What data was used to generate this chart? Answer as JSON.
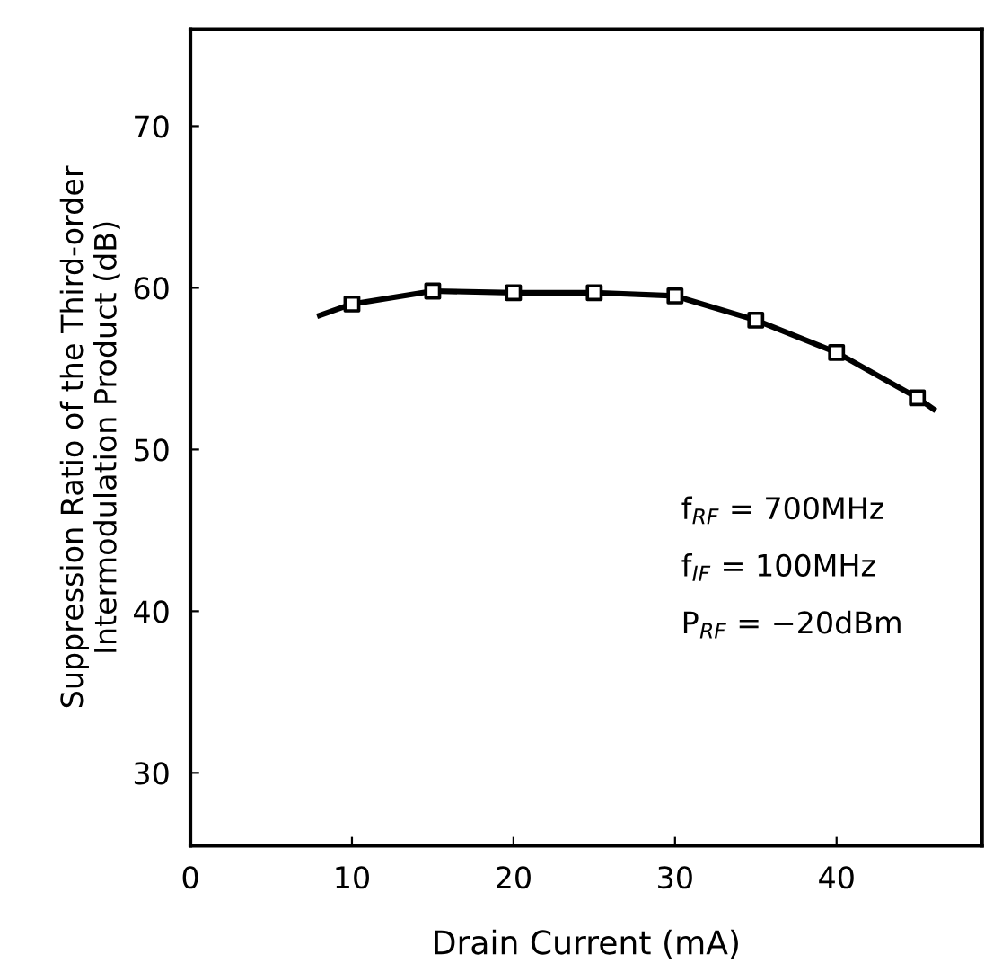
{
  "chart_data": {
    "type": "line",
    "xlabel": "Drain Current (mA)",
    "ylabel": "Suppression Ratio of the Third-order\nIntermodulation Product (dB)",
    "series": [
      {
        "color": "#000000",
        "marker": "none",
        "x": [
          8,
          10,
          15,
          20,
          25,
          30,
          35,
          40,
          45,
          46
        ],
        "values": [
          58.3,
          59.0,
          59.8,
          59.7,
          59.7,
          59.5,
          58.0,
          56.0,
          53.2,
          52.5
        ]
      },
      {
        "color": "#000000",
        "type": "scatter",
        "marker": "square",
        "x": [
          10,
          15,
          20,
          25,
          30,
          35,
          40,
          45
        ],
        "values": [
          59.0,
          59.8,
          59.7,
          59.7,
          59.5,
          58.0,
          56.0,
          53.2
        ]
      }
    ],
    "xlim": [
      0,
      49
    ],
    "ylim": [
      25.5,
      76
    ],
    "xticks": [
      0,
      10,
      20,
      30,
      40
    ],
    "yticks": [
      30,
      40,
      50,
      60,
      70
    ],
    "grid": false,
    "legend": false,
    "annotations": [
      "f$_{RF}$ = 700MHz",
      "f$_{IF}$ = 100MHz",
      "P$_{RF}$ = −20dBm"
    ]
  }
}
